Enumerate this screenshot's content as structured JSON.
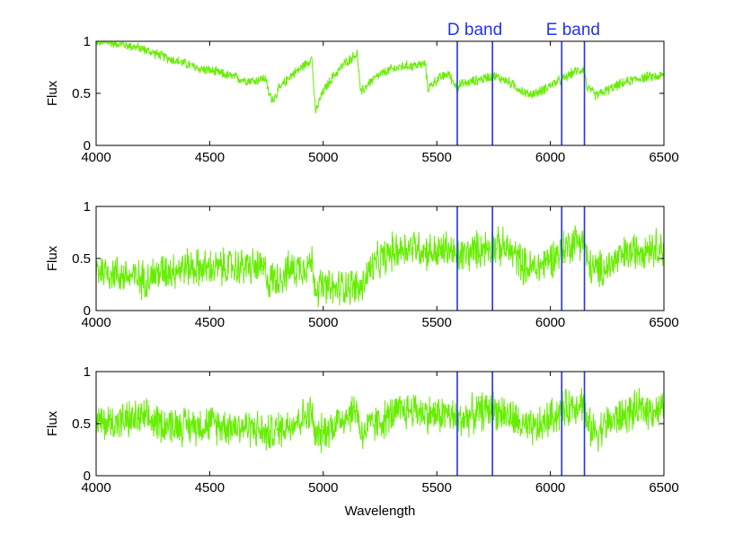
{
  "chart_data": [
    {
      "type": "line",
      "xlabel": "",
      "ylabel": "Flux",
      "xlim": [
        4000,
        6500
      ],
      "ylim": [
        0,
        1
      ],
      "xticks": [
        "4000",
        "4500",
        "5000",
        "5500",
        "6000",
        "6500"
      ],
      "yticks": [
        "0",
        "0.5",
        "1"
      ],
      "series_color": "#66ee00",
      "band_color": "#2233ee",
      "bands": [
        {
          "label": "D band",
          "x": [
            5590,
            5745
          ]
        },
        {
          "label": "E band",
          "x": [
            6050,
            6150
          ]
        }
      ],
      "series": [
        {
          "x": [
            4000,
            4100,
            4200,
            4300,
            4400,
            4450,
            4500,
            4550,
            4600,
            4650,
            4700,
            4745,
            4760,
            4780,
            4800,
            4850,
            4900,
            4950,
            4965,
            5000,
            5050,
            5100,
            5150,
            5165,
            5200,
            5250,
            5300,
            5350,
            5400,
            5450,
            5460,
            5500,
            5550,
            5590,
            5600,
            5650,
            5700,
            5745,
            5800,
            5850,
            5900,
            5950,
            6000,
            6050,
            6100,
            6150,
            6160,
            6200,
            6250,
            6300,
            6350,
            6400,
            6450,
            6500
          ],
          "y": [
            1.0,
            0.98,
            0.93,
            0.85,
            0.78,
            0.74,
            0.72,
            0.69,
            0.66,
            0.63,
            0.62,
            0.65,
            0.5,
            0.44,
            0.52,
            0.66,
            0.74,
            0.84,
            0.32,
            0.52,
            0.68,
            0.8,
            0.88,
            0.5,
            0.6,
            0.68,
            0.73,
            0.76,
            0.77,
            0.78,
            0.55,
            0.63,
            0.69,
            0.55,
            0.58,
            0.61,
            0.64,
            0.67,
            0.63,
            0.56,
            0.49,
            0.51,
            0.58,
            0.63,
            0.7,
            0.74,
            0.56,
            0.48,
            0.53,
            0.58,
            0.62,
            0.65,
            0.66,
            0.67
          ]
        }
      ]
    },
    {
      "type": "line",
      "xlabel": "",
      "ylabel": "Flux",
      "xlim": [
        4000,
        6500
      ],
      "ylim": [
        0,
        1
      ],
      "xticks": [
        "4000",
        "4500",
        "5000",
        "5500",
        "6000",
        "6500"
      ],
      "yticks": [
        "0",
        "0.5",
        "1"
      ],
      "series_color": "#66ee00",
      "band_color": "#2233ee",
      "bands": [
        {
          "label": "",
          "x": [
            5590,
            5745
          ]
        },
        {
          "label": "",
          "x": [
            6050,
            6150
          ]
        }
      ],
      "series": [
        {
          "x": [
            4000,
            4100,
            4200,
            4300,
            4400,
            4500,
            4600,
            4700,
            4745,
            4760,
            4800,
            4850,
            4900,
            4950,
            4965,
            5000,
            5050,
            5100,
            5150,
            5165,
            5200,
            5250,
            5300,
            5350,
            5400,
            5450,
            5500,
            5550,
            5590,
            5600,
            5650,
            5700,
            5745,
            5800,
            5850,
            5900,
            5950,
            6000,
            6050,
            6100,
            6150,
            6160,
            6200,
            6250,
            6300,
            6350,
            6400,
            6450,
            6500
          ],
          "y": [
            0.4,
            0.35,
            0.3,
            0.38,
            0.42,
            0.4,
            0.42,
            0.42,
            0.38,
            0.28,
            0.32,
            0.38,
            0.42,
            0.46,
            0.24,
            0.22,
            0.2,
            0.25,
            0.22,
            0.2,
            0.38,
            0.48,
            0.56,
            0.6,
            0.62,
            0.58,
            0.55,
            0.6,
            0.5,
            0.52,
            0.56,
            0.6,
            0.62,
            0.6,
            0.52,
            0.4,
            0.42,
            0.5,
            0.58,
            0.66,
            0.7,
            0.46,
            0.38,
            0.42,
            0.5,
            0.55,
            0.6,
            0.62,
            0.6
          ]
        }
      ]
    },
    {
      "type": "line",
      "xlabel": "Wavelength",
      "ylabel": "Flux",
      "xlim": [
        4000,
        6500
      ],
      "ylim": [
        0,
        1
      ],
      "xticks": [
        "4000",
        "4500",
        "5000",
        "5500",
        "6000",
        "6500"
      ],
      "yticks": [
        "0",
        "0.5",
        "1"
      ],
      "series_color": "#66ee00",
      "band_color": "#2233ee",
      "bands": [
        {
          "label": "",
          "x": [
            5590,
            5745
          ]
        },
        {
          "label": "",
          "x": [
            6050,
            6150
          ]
        }
      ],
      "series": [
        {
          "x": [
            4000,
            4100,
            4200,
            4300,
            4400,
            4500,
            4600,
            4700,
            4745,
            4760,
            4800,
            4850,
            4900,
            4950,
            4965,
            5000,
            5050,
            5100,
            5150,
            5165,
            5200,
            5250,
            5300,
            5350,
            5400,
            5450,
            5500,
            5550,
            5590,
            5600,
            5650,
            5700,
            5745,
            5800,
            5850,
            5900,
            5950,
            6000,
            6050,
            6100,
            6150,
            6160,
            6200,
            6250,
            6300,
            6350,
            6400,
            6450,
            6500
          ],
          "y": [
            0.5,
            0.52,
            0.55,
            0.5,
            0.48,
            0.5,
            0.48,
            0.46,
            0.4,
            0.4,
            0.44,
            0.5,
            0.55,
            0.6,
            0.36,
            0.42,
            0.5,
            0.58,
            0.64,
            0.4,
            0.46,
            0.52,
            0.58,
            0.62,
            0.64,
            0.6,
            0.58,
            0.6,
            0.52,
            0.54,
            0.58,
            0.62,
            0.64,
            0.6,
            0.52,
            0.44,
            0.46,
            0.56,
            0.62,
            0.68,
            0.72,
            0.48,
            0.42,
            0.5,
            0.56,
            0.6,
            0.64,
            0.64,
            0.62
          ]
        }
      ]
    }
  ]
}
